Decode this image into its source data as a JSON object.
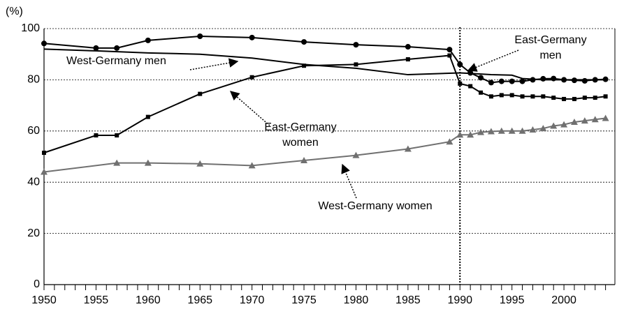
{
  "chart_data": {
    "type": "line",
    "y_label": "(%)",
    "xlim": [
      1950,
      2004.9
    ],
    "ylim": [
      0,
      100
    ],
    "xticks": [
      1950,
      1955,
      1960,
      1965,
      1970,
      1975,
      1980,
      1985,
      1990,
      1995,
      2000
    ],
    "xticks_minor": [
      1951,
      1952,
      1953,
      1954,
      1956,
      1957,
      1958,
      1959,
      1961,
      1962,
      1963,
      1964,
      1966,
      1967,
      1968,
      1969,
      1971,
      1972,
      1973,
      1974,
      1976,
      1977,
      1978,
      1979,
      1981,
      1982,
      1983,
      1984,
      1986,
      1987,
      1988,
      1989,
      1991,
      1992,
      1993,
      1994,
      1996,
      1997,
      1998,
      1999,
      2001,
      2002,
      2003,
      2004
    ],
    "yticks": [
      0,
      20,
      40,
      60,
      80,
      100
    ],
    "grid": true,
    "vline": 1990,
    "series": [
      {
        "name": "East-Germany men",
        "color": "#000000",
        "marker": "circle",
        "x": [
          1950,
          1955,
          1957,
          1960,
          1965,
          1970,
          1975,
          1980,
          1985,
          1989,
          1990,
          1991,
          1992,
          1993,
          1994,
          1995,
          1996,
          1997,
          1998,
          1999,
          2000,
          2001,
          2002,
          2003,
          2004
        ],
        "values": [
          94.2,
          92.4,
          92.4,
          95.4,
          97.0,
          96.5,
          94.8,
          93.7,
          92.9,
          91.8,
          86.0,
          82.7,
          80.8,
          78.9,
          79.4,
          79.4,
          79.4,
          80.0,
          80.4,
          80.5,
          80.0,
          79.8,
          79.6,
          80.0,
          80.2
        ]
      },
      {
        "name": "East-Germany women",
        "color": "#000000",
        "marker": "square",
        "x": [
          1950,
          1955,
          1957,
          1960,
          1965,
          1970,
          1975,
          1980,
          1985,
          1989,
          1990,
          1991,
          1992,
          1993,
          1994,
          1995,
          1996,
          1997,
          1998,
          1999,
          2000,
          2001,
          2002,
          2003,
          2004
        ],
        "values": [
          51.5,
          58.3,
          58.3,
          65.5,
          74.5,
          81.0,
          85.5,
          86.0,
          88.0,
          89.5,
          78.5,
          77.5,
          75.0,
          73.5,
          74.0,
          74.0,
          73.5,
          73.5,
          73.5,
          73.0,
          72.5,
          72.5,
          73.0,
          73.0,
          73.5
        ]
      },
      {
        "name": "West-Germany men",
        "color": "#000000",
        "marker": "none",
        "x": [
          1950,
          1955,
          1960,
          1965,
          1970,
          1975,
          1980,
          1985,
          1990,
          1991,
          1993,
          1995,
          1996,
          1998,
          2000,
          2004
        ],
        "values": [
          92.0,
          91.3,
          90.5,
          90.0,
          88.5,
          86.0,
          84.5,
          82.0,
          82.7,
          82.5,
          82.0,
          81.8,
          80.5,
          80.0,
          80.0,
          80.0
        ]
      },
      {
        "name": "West-Germany women",
        "color": "#707070",
        "marker": "triangle",
        "x": [
          1950,
          1957,
          1960,
          1965,
          1970,
          1975,
          1980,
          1985,
          1989,
          1990,
          1991,
          1992,
          1993,
          1994,
          1995,
          1996,
          1997,
          1998,
          1999,
          2000,
          2001,
          2002,
          2003,
          2004
        ],
        "values": [
          44.0,
          47.5,
          47.5,
          47.2,
          46.5,
          48.5,
          50.5,
          53.0,
          55.8,
          58.5,
          58.5,
          59.5,
          59.8,
          60.0,
          60.0,
          60.0,
          60.5,
          61.0,
          62.0,
          62.5,
          63.5,
          64.0,
          64.5,
          65.0
        ]
      }
    ],
    "annotations": [
      {
        "lines": [
          "West-Germany men"
        ]
      },
      {
        "lines": [
          "East-Germany",
          "women"
        ]
      },
      {
        "lines": [
          "East-Germany",
          "men"
        ]
      },
      {
        "lines": [
          "West-Germany women"
        ]
      }
    ]
  }
}
